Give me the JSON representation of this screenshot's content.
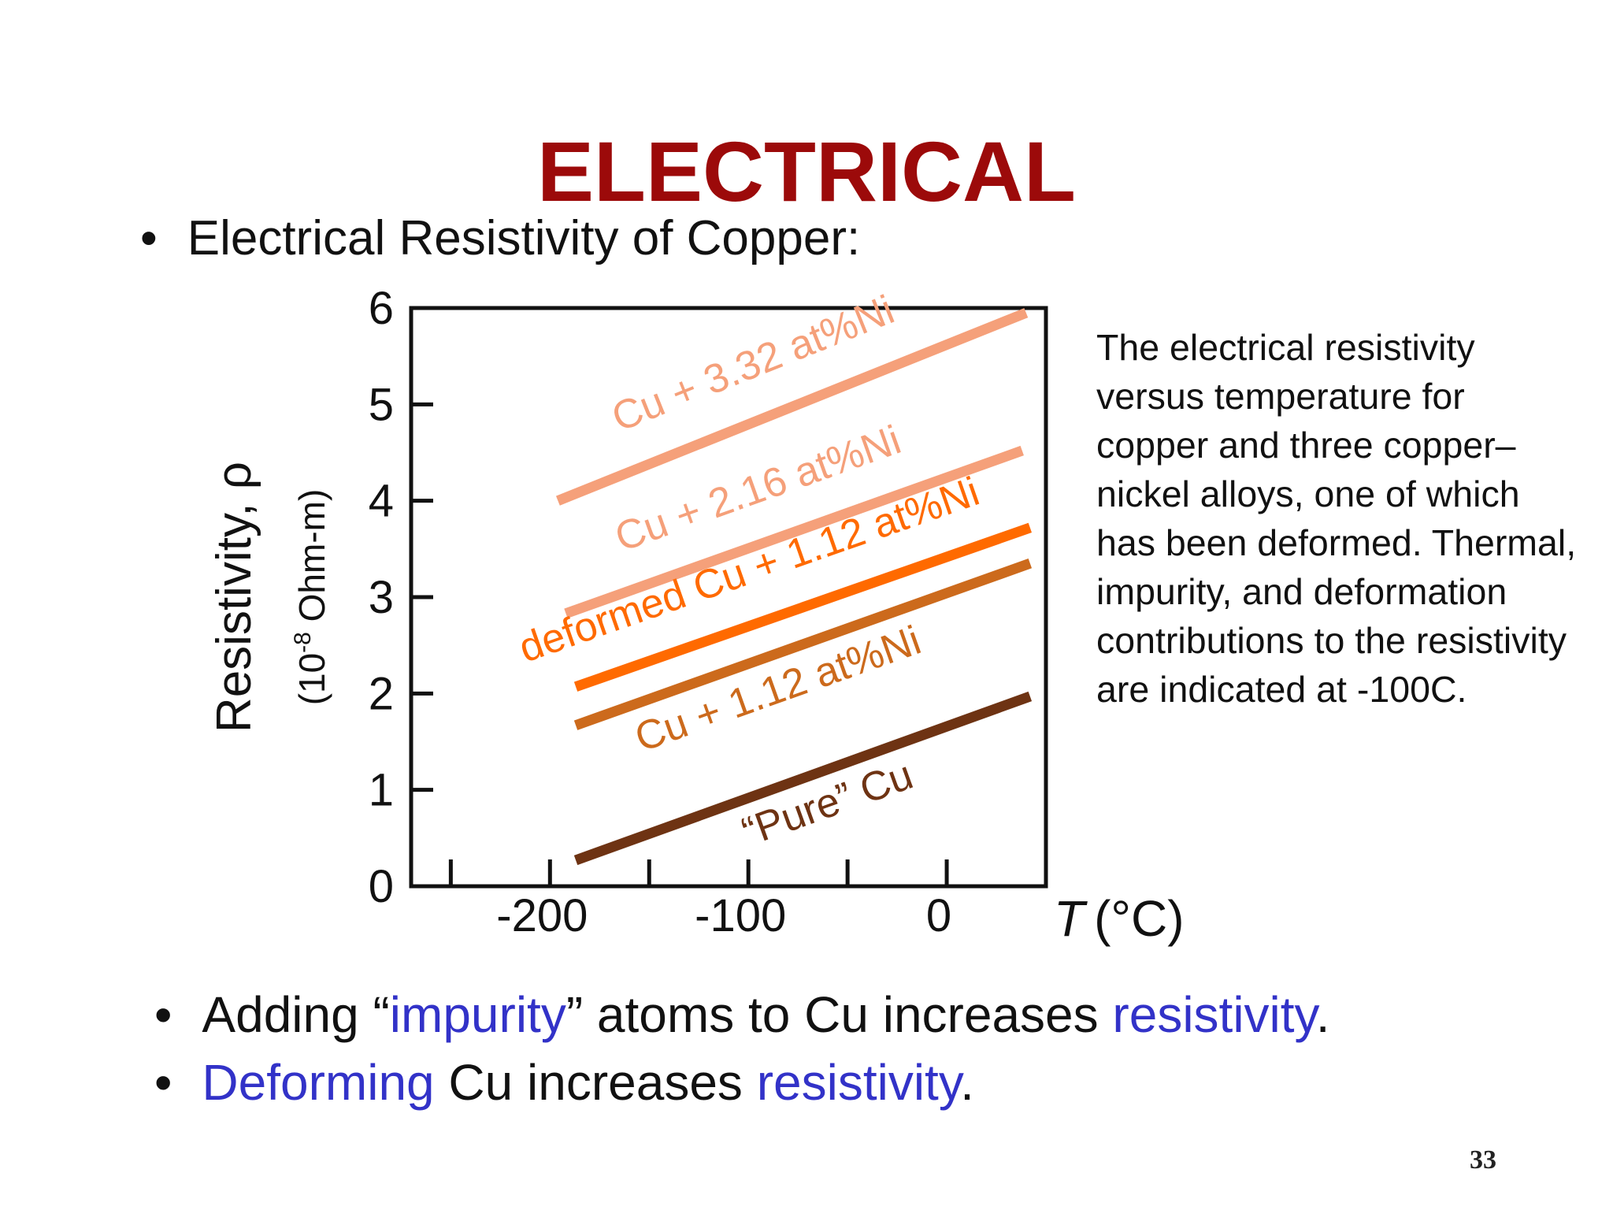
{
  "slide": {
    "title": "ELECTRICAL",
    "bullet_main": "Electrical Resistivity of Copper:",
    "caption": "The electrical resistivity versus temperature for copper and three copper–nickel alloys, one of which has been deformed. Thermal, impurity, and deformation contributions to the resistivity are indicated at -100C.",
    "bullets": [
      [
        {
          "text": "Adding “",
          "hl": false
        },
        {
          "text": "impurity",
          "hl": true
        },
        {
          "text": "” atoms to Cu increases ",
          "hl": false
        },
        {
          "text": "resistivity",
          "hl": true
        },
        {
          "text": ".",
          "hl": false
        }
      ],
      [
        {
          "text": "Deforming",
          "hl": true
        },
        {
          "text": " Cu increases ",
          "hl": false
        },
        {
          "text": "resistivity",
          "hl": true
        },
        {
          "text": ".",
          "hl": false
        }
      ]
    ],
    "bullet_glyph": "•",
    "page_number": "33",
    "colors": {
      "title": "#9c0a0a",
      "highlight": "#3232c8",
      "text": "#111111"
    }
  },
  "chart_data": {
    "type": "line",
    "title": "",
    "ylabel": "Resistivity, ρ",
    "ylabel_units": "(10-8 Ohm-m)",
    "xlabel_symbol": "T",
    "xlabel_units": "(°C)",
    "xlim": [
      -270,
      50
    ],
    "ylim": [
      0,
      6
    ],
    "x_ticks": [
      -250,
      -200,
      -150,
      -100,
      -50,
      0
    ],
    "x_tick_labels": [
      {
        "value": -200,
        "label": "-200"
      },
      {
        "value": -100,
        "label": "-100"
      },
      {
        "value": 0,
        "label": "0"
      }
    ],
    "y_ticks": [
      {
        "value": 0,
        "label": "0"
      },
      {
        "value": 1,
        "label": "1"
      },
      {
        "value": 2,
        "label": "2"
      },
      {
        "value": 3,
        "label": "3"
      },
      {
        "value": 4,
        "label": "4"
      },
      {
        "value": 5,
        "label": "5"
      },
      {
        "value": 6,
        "label": "6"
      }
    ],
    "grid": false,
    "legend": "none (inline labels)",
    "series": [
      {
        "name": "Cu + 3.32 at%Ni",
        "color": "#f5a07a",
        "x": [
          -196,
          40
        ],
        "y": [
          4.0,
          5.95
        ]
      },
      {
        "name": "Cu + 2.16 at%Ni",
        "color": "#f5a07a",
        "x": [
          -192,
          38
        ],
        "y": [
          2.83,
          4.52
        ]
      },
      {
        "name": "deformed Cu + 1.12 at%Ni",
        "color": "#ff6a00",
        "x": [
          -187,
          42
        ],
        "y": [
          2.07,
          3.72
        ]
      },
      {
        "name": "Cu + 1.12 at%Ni",
        "color": "#cc6a1c",
        "x": [
          -187,
          42
        ],
        "y": [
          1.67,
          3.35
        ]
      },
      {
        "name": "“Pure” Cu",
        "color": "#6e3313",
        "x": [
          -187,
          42
        ],
        "y": [
          0.27,
          1.97
        ]
      }
    ]
  }
}
